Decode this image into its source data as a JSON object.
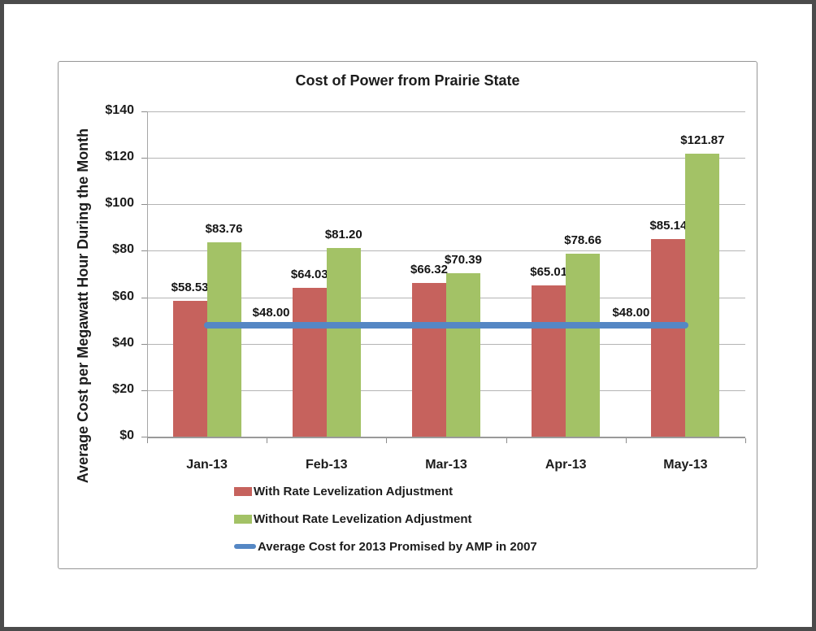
{
  "window": {
    "background": "#ffffff",
    "frame_color": "#4b4b4b",
    "chart_border_color": "#969696"
  },
  "chart_data": {
    "type": "bar",
    "title": "Cost of Power from Prairie State",
    "xlabel": "",
    "ylabel": "Average Cost per Megawatt Hour During the Month",
    "categories": [
      "Jan-13",
      "Feb-13",
      "Mar-13",
      "Apr-13",
      "May-13"
    ],
    "series": [
      {
        "name": "With Rate Levelization Adjustment",
        "type": "bar",
        "color": "#c6625d",
        "values": [
          58.53,
          64.03,
          66.32,
          65.01,
          85.14
        ]
      },
      {
        "name": "Without Rate Levelization Adjustment",
        "type": "bar",
        "color": "#a3c266",
        "values": [
          83.76,
          81.2,
          70.39,
          78.66,
          121.87
        ]
      },
      {
        "name": "Average Cost for 2013 Promised by AMP in 2007",
        "type": "line",
        "color": "#5587c4",
        "values": [
          48.0,
          48.0,
          48.0,
          48.0,
          48.0
        ],
        "label_points": [
          {
            "index": 0,
            "dx": 79
          },
          {
            "index": 4,
            "dx": -67
          }
        ]
      }
    ],
    "ylim": [
      0,
      140
    ],
    "ytick_step": 20,
    "ytick_labels": [
      "$0",
      "$20",
      "$40",
      "$60",
      "$80",
      "$100",
      "$120",
      "$140"
    ],
    "value_prefix": "$",
    "value_decimals": 2,
    "grid": true,
    "legend_position": "bottom-left",
    "colors": {
      "gridline": "#b4b4b4",
      "axis": "#9a9a9a",
      "label_text": "#151515"
    }
  }
}
